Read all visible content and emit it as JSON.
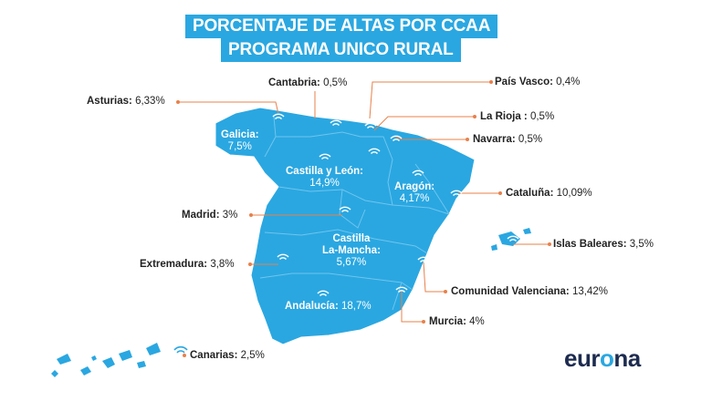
{
  "title": {
    "line1": "PORCENTAJE DE ALTAS POR CCAA",
    "line2": "PROGRAMA UNICO RURAL"
  },
  "colors": {
    "accent": "#2aa7e1",
    "map": "#2aa7e1",
    "connector": "#e8804a",
    "brand_dark": "#1d2b4f"
  },
  "regions": {
    "cantabria": {
      "name": "Cantabria:",
      "value": "0,5%"
    },
    "pais_vasco": {
      "name": "País Vasco:",
      "value": "0,4%"
    },
    "asturias": {
      "name": "Asturias:",
      "value": "6,33%"
    },
    "la_rioja": {
      "name": "La Rioja :",
      "value": "0,5%"
    },
    "navarra": {
      "name": "Navarra:",
      "value": "0,5%"
    },
    "galicia": {
      "name": "Galicia:",
      "value": "7,5%"
    },
    "castilla_leon": {
      "name": "Castilla y León:",
      "value": "14,9%"
    },
    "aragon": {
      "name": "Aragón:",
      "value": "4,17%"
    },
    "cataluna": {
      "name": "Cataluña:",
      "value": "10,09%"
    },
    "madrid": {
      "name": "Madrid:",
      "value": "3%"
    },
    "castilla_mancha": {
      "name1": "Castilla",
      "name2": "La-Mancha:",
      "value": "5,67%"
    },
    "islas_baleares": {
      "name": "Islas Baleares:",
      "value": "3,5%"
    },
    "extremadura": {
      "name": "Extremadura:",
      "value": "3,8%"
    },
    "comunidad_valenciana": {
      "name": "Comunidad Valenciana:",
      "value": "13,42%"
    },
    "andalucia": {
      "name": "Andalucía:",
      "value": "18,7%"
    },
    "murcia": {
      "name": "Murcia:",
      "value": "4%"
    },
    "canarias": {
      "name": "Canarias:",
      "value": "2,5%"
    }
  },
  "logo": {
    "prefix": "eur",
    "o": "o",
    "suffix": "na"
  },
  "icons": {
    "marker": "wifi-icon"
  }
}
